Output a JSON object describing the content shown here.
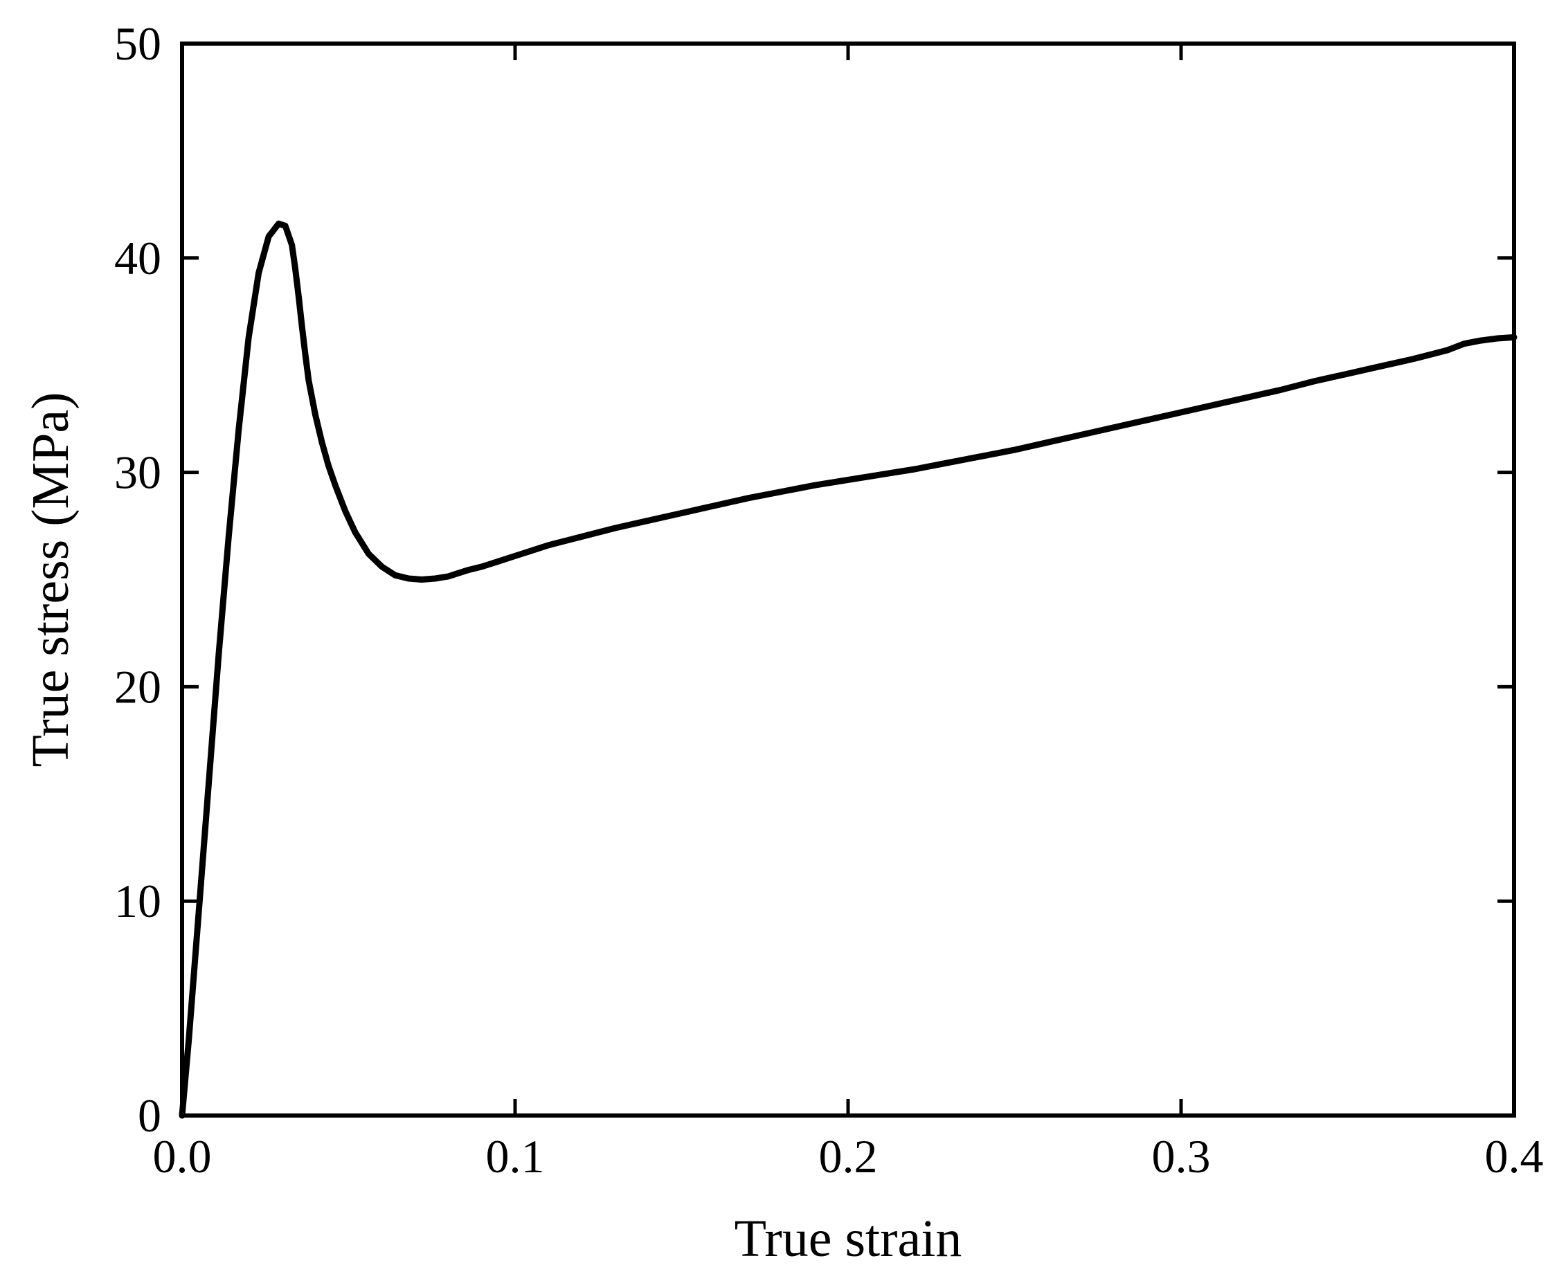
{
  "chart_data": {
    "type": "line",
    "title": "",
    "xlabel": "True strain",
    "ylabel": "True stress (MPa)",
    "xlim": [
      0.0,
      0.4
    ],
    "ylim": [
      0,
      50
    ],
    "xticks": [
      0.0,
      0.1,
      0.2,
      0.3,
      0.4
    ],
    "xtick_labels": [
      "0.0",
      "0.1",
      "0.2",
      "0.3",
      "0.4"
    ],
    "yticks": [
      0,
      10,
      20,
      30,
      40,
      50
    ],
    "ytick_labels": [
      "0",
      "10",
      "20",
      "30",
      "40",
      "50"
    ],
    "grid": false,
    "legend": "none",
    "line_color": "#000000",
    "series": [
      {
        "x": [
          0.0,
          0.002,
          0.005,
          0.008,
          0.011,
          0.014,
          0.017,
          0.02,
          0.023,
          0.026,
          0.029,
          0.031,
          0.033,
          0.034,
          0.035,
          0.036,
          0.037,
          0.038,
          0.04,
          0.042,
          0.044,
          0.046,
          0.049,
          0.052,
          0.056,
          0.06,
          0.064,
          0.068,
          0.072,
          0.076,
          0.08,
          0.083,
          0.086,
          0.09,
          0.095,
          0.1,
          0.105,
          0.11,
          0.115,
          0.12,
          0.13,
          0.14,
          0.15,
          0.16,
          0.17,
          0.18,
          0.19,
          0.2,
          0.21,
          0.22,
          0.23,
          0.24,
          0.25,
          0.26,
          0.27,
          0.28,
          0.29,
          0.3,
          0.31,
          0.32,
          0.33,
          0.34,
          0.35,
          0.36,
          0.37,
          0.38,
          0.385,
          0.39,
          0.395,
          0.4
        ],
        "y": [
          0.0,
          3.5,
          9.5,
          15.5,
          21.5,
          27.0,
          32.0,
          36.3,
          39.3,
          41.0,
          41.6,
          41.5,
          40.6,
          39.5,
          38.2,
          36.8,
          35.5,
          34.3,
          32.7,
          31.4,
          30.3,
          29.4,
          28.2,
          27.2,
          26.2,
          25.6,
          25.2,
          25.05,
          25.0,
          25.05,
          25.15,
          25.3,
          25.45,
          25.6,
          25.85,
          26.1,
          26.35,
          26.6,
          26.8,
          27.0,
          27.4,
          27.75,
          28.1,
          28.45,
          28.8,
          29.1,
          29.4,
          29.65,
          29.9,
          30.15,
          30.45,
          30.75,
          31.05,
          31.4,
          31.75,
          32.1,
          32.45,
          32.8,
          33.15,
          33.5,
          33.85,
          34.25,
          34.6,
          34.95,
          35.3,
          35.7,
          36.0,
          36.15,
          36.25,
          36.3
        ]
      }
    ]
  }
}
